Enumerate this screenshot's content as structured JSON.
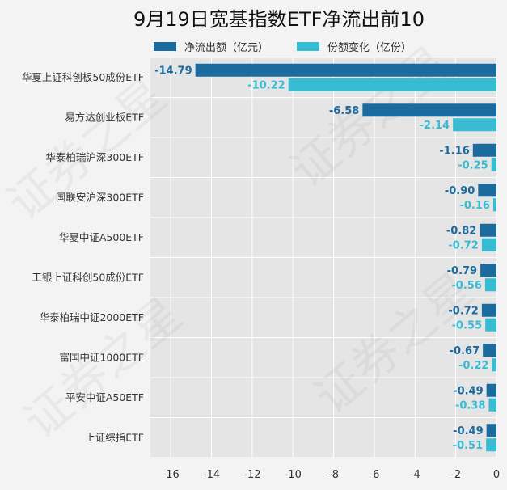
{
  "chart_data": {
    "type": "bar",
    "orientation": "horizontal",
    "title": "9月19日宽基指数ETF净流出前10",
    "categories": [
      "华夏上证科创板50成份ETF",
      "易方达创业板ETF",
      "华泰柏瑞沪深300ETF",
      "国联安沪深300ETF",
      "华夏中证A500ETF",
      "工银上证科创50成份ETF",
      "华泰柏瑞中证2000ETF",
      "富国中证1000ETF",
      "平安中证A50ETF",
      "上证综指ETF"
    ],
    "series": [
      {
        "name": "净流出额（亿元）",
        "color": "#1c6b9e",
        "values": [
          -14.79,
          -6.58,
          -1.16,
          -0.9,
          -0.82,
          -0.79,
          -0.72,
          -0.67,
          -0.49,
          -0.49
        ]
      },
      {
        "name": "份额变化（亿份）",
        "color": "#38bcd4",
        "values": [
          -10.22,
          -2.14,
          -0.25,
          -0.16,
          -0.72,
          -0.56,
          -0.55,
          -0.22,
          -0.38,
          -0.51
        ]
      }
    ],
    "value_labels": [
      [
        "-14.79",
        "-6.58",
        "-1.16",
        "-0.90",
        "-0.82",
        "-0.79",
        "-0.72",
        "-0.67",
        "-0.49",
        "-0.49"
      ],
      [
        "-10.22",
        "-2.14",
        "-0.25",
        "-0.16",
        "-0.72",
        "-0.56",
        "-0.55",
        "-0.22",
        "-0.38",
        "-0.51"
      ]
    ],
    "x_ticks": [
      "-16",
      "-14",
      "-12",
      "-10",
      "-8",
      "-6",
      "-4",
      "-2",
      "0"
    ],
    "xlim": [
      -17,
      0
    ],
    "grid": true,
    "legend_position": "top",
    "plot_background": "#e5e5e5",
    "watermark": "证券之星"
  }
}
